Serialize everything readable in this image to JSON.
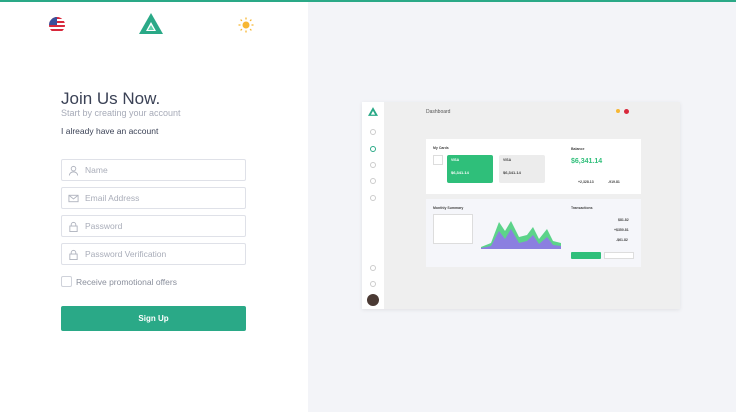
{
  "header": {
    "flag_icon": "us-flag-icon",
    "logo_icon": "triangle-logo-icon",
    "theme_icon": "sun-icon"
  },
  "colors": {
    "accent": "#2aa987",
    "title": "#3b4256",
    "right_bg": "#f3f4f8"
  },
  "form": {
    "title": "Join Us Now.",
    "subtitle": "Start by creating your account",
    "login_link": "I already have an account",
    "fields": [
      {
        "placeholder": "Name",
        "icon": "user-icon"
      },
      {
        "placeholder": "Email Address",
        "icon": "mail-icon"
      },
      {
        "placeholder": "Password",
        "icon": "lock-icon"
      },
      {
        "placeholder": "Password Verification",
        "icon": "lock-icon"
      }
    ],
    "checkbox_label": "Receive promotional offers",
    "checkbox_checked": false,
    "submit_label": "Sign Up"
  },
  "preview": {
    "title": "Dashboard",
    "my_cards": "My Cards",
    "card1_brand": "VISA",
    "card1_amount": "$6,341.14",
    "card2_brand": "VISA",
    "card2_amount": "$6,341.14",
    "balance_label": "Balance",
    "balance": "$6,341.14",
    "income": "+2,328.13",
    "expense": "-919.81",
    "monthly": "Monthly Summary",
    "transactions": "Transactions",
    "tx": [
      "$81.82",
      "+$350.81",
      "-$61.82"
    ]
  }
}
